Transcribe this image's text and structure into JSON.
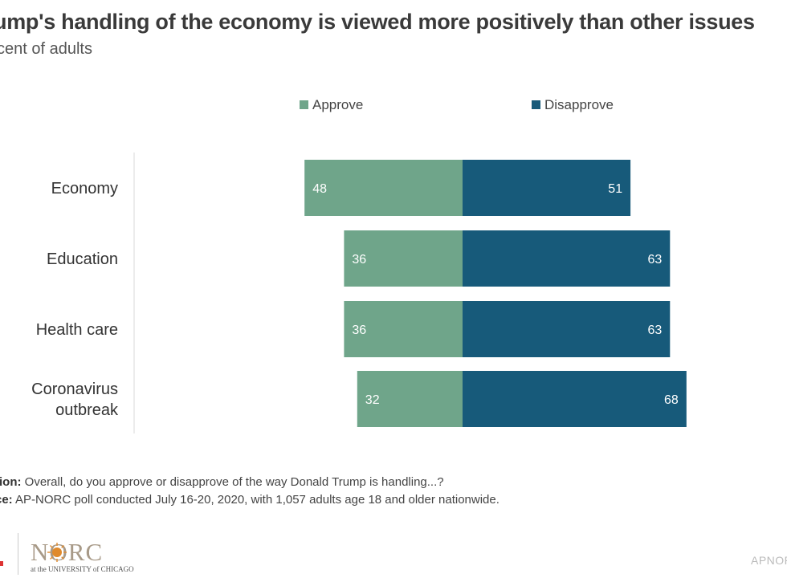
{
  "header": {
    "title": "ump's handling of the economy is viewed more positively than other issues",
    "subtitle": "cent of adults"
  },
  "chart_data": {
    "type": "bar",
    "orientation": "horizontal-diverging",
    "categories": [
      "Economy",
      "Education",
      "Health care",
      "Coronavirus outbreak"
    ],
    "category_lines": [
      [
        "Economy"
      ],
      [
        "Education"
      ],
      [
        "Health care"
      ],
      [
        "Coronavirus",
        "outbreak"
      ]
    ],
    "series": [
      {
        "name": "Approve",
        "values": [
          48,
          36,
          36,
          32
        ],
        "color": "#6fa58a"
      },
      {
        "name": "Disapprove",
        "values": [
          51,
          63,
          63,
          68
        ],
        "color": "#175a7a"
      }
    ],
    "legend_position": "top",
    "grid": false
  },
  "notes": {
    "question_label": "tion:",
    "question_text": " Overall, do you approve or disapprove of the way Donald Trump is handling...?",
    "source_label": "ce:",
    "source_text": " AP-NORC poll conducted July 16-20, 2020, with 1,057 adults age 18 and older nationwide."
  },
  "footer": {
    "logo_text": "NORC",
    "logo_sub": "at the UNIVERSITY of CHICAGO",
    "right_text": "APNOR"
  },
  "colors": {
    "approve": "#6fa58a",
    "disapprove": "#175a7a",
    "logo": "#a89a88",
    "logo_sun": "#e08a2c"
  },
  "icons": {
    "logo_sun": "sunburst-icon"
  }
}
